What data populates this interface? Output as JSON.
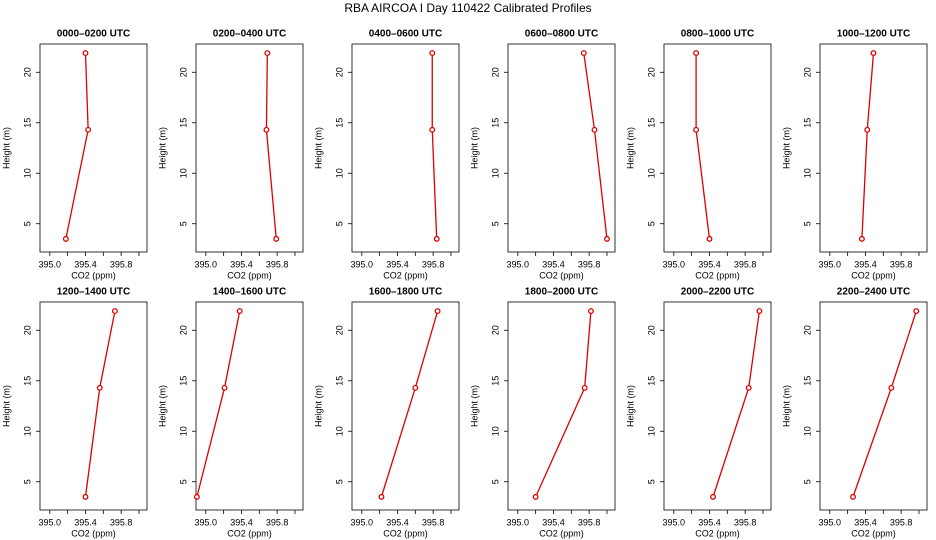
{
  "title": "RBA AIRCOA I  Day 110422  Calibrated Profiles",
  "chart_data": [
    {
      "type": "line",
      "title": "0000–0200 UTC",
      "xlabel": "CO2 (ppm)",
      "ylabel": "Height (m)",
      "color": "#dd0000",
      "x": [
        395.4,
        395.43,
        395.18
      ],
      "y": [
        21.9,
        14.3,
        3.5
      ],
      "xlim": [
        394.89,
        396.09
      ],
      "ylim": [
        2.2,
        22.8
      ],
      "xticks": [
        {
          "value": 395,
          "label": "395.0"
        },
        395.4,
        395.8
      ],
      "xminor_ticks": [
        395.2,
        395.6,
        396
      ],
      "yticks": [
        5,
        10,
        15,
        20
      ]
    },
    {
      "type": "line",
      "title": "0200–0400 UTC",
      "xlabel": "CO2 (ppm)",
      "ylabel": "Height (m)",
      "color": "#dd0000",
      "x": [
        395.69,
        395.68,
        395.79
      ],
      "y": [
        21.9,
        14.3,
        3.5
      ],
      "xlim": [
        394.89,
        396.09
      ],
      "ylim": [
        2.2,
        22.8
      ],
      "xticks": [
        {
          "value": 395,
          "label": "395.0"
        },
        395.4,
        395.8
      ],
      "xminor_ticks": [
        395.2,
        395.6,
        396
      ],
      "yticks": [
        5,
        10,
        15,
        20
      ]
    },
    {
      "type": "line",
      "title": "0400–0600 UTC",
      "xlabel": "CO2 (ppm)",
      "ylabel": "Height (m)",
      "color": "#dd0000",
      "x": [
        395.79,
        395.79,
        395.84
      ],
      "y": [
        21.9,
        14.3,
        3.5
      ],
      "xlim": [
        394.89,
        396.09
      ],
      "ylim": [
        2.2,
        22.8
      ],
      "xticks": [
        {
          "value": 395,
          "label": "395.0"
        },
        395.4,
        395.8
      ],
      "xminor_ticks": [
        395.2,
        395.6,
        396
      ],
      "yticks": [
        5,
        10,
        15,
        20
      ]
    },
    {
      "type": "line",
      "title": "0600–0800 UTC",
      "xlabel": "CO2 (ppm)",
      "ylabel": "Height (m)",
      "color": "#dd0000",
      "x": [
        395.74,
        395.86,
        396.0
      ],
      "y": [
        21.9,
        14.3,
        3.5
      ],
      "xlim": [
        394.89,
        396.09
      ],
      "ylim": [
        2.2,
        22.8
      ],
      "xticks": [
        {
          "value": 395,
          "label": "395.0"
        },
        395.4,
        395.8
      ],
      "xminor_ticks": [
        395.2,
        395.6,
        396
      ],
      "yticks": [
        5,
        10,
        15,
        20
      ]
    },
    {
      "type": "line",
      "title": "0800–1000 UTC",
      "xlabel": "CO2 (ppm)",
      "ylabel": "Height (m)",
      "color": "#dd0000",
      "x": [
        395.25,
        395.25,
        395.4
      ],
      "y": [
        21.9,
        14.3,
        3.5
      ],
      "xlim": [
        394.89,
        396.09
      ],
      "ylim": [
        2.2,
        22.8
      ],
      "xticks": [
        {
          "value": 395,
          "label": "395.0"
        },
        395.4,
        395.8
      ],
      "xminor_ticks": [
        395.2,
        395.6,
        396
      ],
      "yticks": [
        5,
        10,
        15,
        20
      ]
    },
    {
      "type": "line",
      "title": "1000–1200 UTC",
      "xlabel": "CO2 (ppm)",
      "ylabel": "Height (m)",
      "color": "#dd0000",
      "x": [
        395.49,
        395.42,
        395.36
      ],
      "y": [
        21.9,
        14.3,
        3.5
      ],
      "xlim": [
        394.89,
        396.09
      ],
      "ylim": [
        2.2,
        22.8
      ],
      "xticks": [
        {
          "value": 395,
          "label": "395.0"
        },
        395.4,
        395.8
      ],
      "xminor_ticks": [
        395.2,
        395.6,
        396
      ],
      "yticks": [
        5,
        10,
        15,
        20
      ]
    },
    {
      "type": "line",
      "title": "1200–1400 UTC",
      "xlabel": "CO2 (ppm)",
      "ylabel": "Height (m)",
      "color": "#dd0000",
      "x": [
        395.73,
        395.56,
        395.4
      ],
      "y": [
        21.9,
        14.3,
        3.5
      ],
      "xlim": [
        394.89,
        396.09
      ],
      "ylim": [
        2.2,
        22.8
      ],
      "xticks": [
        {
          "value": 395,
          "label": "395.0"
        },
        395.4,
        395.8
      ],
      "xminor_ticks": [
        395.2,
        395.6,
        396
      ],
      "yticks": [
        5,
        10,
        15,
        20
      ]
    },
    {
      "type": "line",
      "title": "1400–1600 UTC",
      "xlabel": "CO2 (ppm)",
      "ylabel": "Height (m)",
      "color": "#dd0000",
      "x": [
        395.38,
        395.21,
        394.9
      ],
      "y": [
        21.9,
        14.3,
        3.5
      ],
      "xlim": [
        394.89,
        396.09
      ],
      "ylim": [
        2.2,
        22.8
      ],
      "xticks": [
        {
          "value": 395,
          "label": "395.0"
        },
        395.4,
        395.8
      ],
      "xminor_ticks": [
        395.2,
        395.6,
        396
      ],
      "yticks": [
        5,
        10,
        15,
        20
      ]
    },
    {
      "type": "line",
      "title": "1600–1800 UTC",
      "xlabel": "CO2 (ppm)",
      "ylabel": "Height (m)",
      "color": "#dd0000",
      "x": [
        395.85,
        395.6,
        395.22
      ],
      "y": [
        21.9,
        14.3,
        3.5
      ],
      "xlim": [
        394.89,
        396.09
      ],
      "ylim": [
        2.2,
        22.8
      ],
      "xticks": [
        {
          "value": 395,
          "label": "395.0"
        },
        395.4,
        395.8
      ],
      "xminor_ticks": [
        395.2,
        395.6,
        396
      ],
      "yticks": [
        5,
        10,
        15,
        20
      ]
    },
    {
      "type": "line",
      "title": "1800–2000 UTC",
      "xlabel": "CO2 (ppm)",
      "ylabel": "Height (m)",
      "color": "#dd0000",
      "x": [
        395.82,
        395.75,
        395.2
      ],
      "y": [
        21.9,
        14.3,
        3.5
      ],
      "xlim": [
        394.89,
        396.09
      ],
      "ylim": [
        2.2,
        22.8
      ],
      "xticks": [
        {
          "value": 395,
          "label": "395.0"
        },
        395.4,
        395.8
      ],
      "xminor_ticks": [
        395.2,
        395.6,
        396
      ],
      "yticks": [
        5,
        10,
        15,
        20
      ]
    },
    {
      "type": "line",
      "title": "2000–2200 UTC",
      "xlabel": "CO2 (ppm)",
      "ylabel": "Height (m)",
      "color": "#dd0000",
      "x": [
        395.96,
        395.84,
        395.44
      ],
      "y": [
        21.9,
        14.3,
        3.5
      ],
      "xlim": [
        394.89,
        396.09
      ],
      "ylim": [
        2.2,
        22.8
      ],
      "xticks": [
        {
          "value": 395,
          "label": "395.0"
        },
        395.4,
        395.8
      ],
      "xminor_ticks": [
        395.2,
        395.6,
        396
      ],
      "yticks": [
        5,
        10,
        15,
        20
      ]
    },
    {
      "type": "line",
      "title": "2200–2400 UTC",
      "xlabel": "CO2 (ppm)",
      "ylabel": "Height (m)",
      "color": "#dd0000",
      "x": [
        395.97,
        395.69,
        395.26
      ],
      "y": [
        21.9,
        14.3,
        3.5
      ],
      "xlim": [
        394.89,
        396.09
      ],
      "ylim": [
        2.2,
        22.8
      ],
      "xticks": [
        {
          "value": 395,
          "label": "395.0"
        },
        395.4,
        395.8
      ],
      "xminor_ticks": [
        395.2,
        395.6,
        396
      ],
      "yticks": [
        5,
        10,
        15,
        20
      ]
    }
  ]
}
